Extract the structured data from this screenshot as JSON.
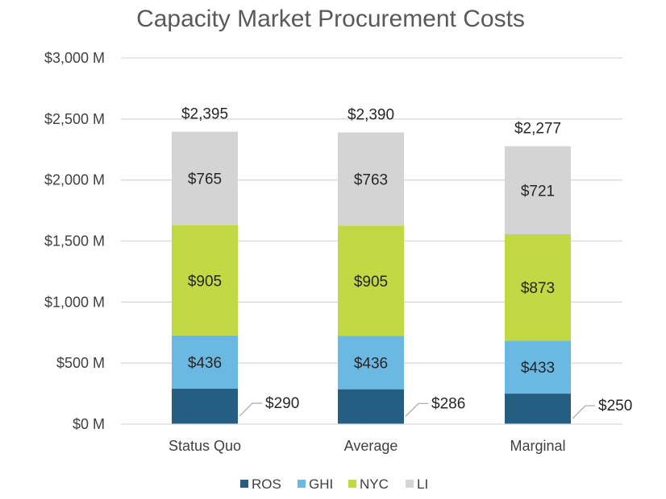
{
  "chart_data": {
    "type": "bar",
    "stacked": true,
    "title": "Capacity Market Procurement Costs",
    "xlabel": "",
    "ylabel": "",
    "ylim": [
      0,
      3000
    ],
    "yticks": [
      "$0 M",
      "$500 M",
      "$1,000 M",
      "$1,500 M",
      "$2,000 M",
      "$2,500 M",
      "$3,000 M"
    ],
    "ytick_values": [
      0,
      500,
      1000,
      1500,
      2000,
      2500,
      3000
    ],
    "categories": [
      "Status Quo",
      "Average",
      "Marginal"
    ],
    "series": [
      {
        "name": "ROS",
        "color": "#255E80",
        "values": [
          290,
          286,
          250
        ],
        "labels": [
          "$290",
          "$286",
          "$250"
        ]
      },
      {
        "name": "GHI",
        "color": "#6BB9E3",
        "values": [
          436,
          436,
          433
        ],
        "labels": [
          "$436",
          "$436",
          "$433"
        ]
      },
      {
        "name": "NYC",
        "color": "#C2D845",
        "values": [
          905,
          905,
          873
        ],
        "labels": [
          "$905",
          "$905",
          "$873"
        ]
      },
      {
        "name": "LI",
        "color": "#D4D4D4",
        "values": [
          765,
          763,
          721
        ],
        "labels": [
          "$765",
          "$763",
          "$721"
        ]
      }
    ],
    "totals": [
      2395,
      2390,
      2277
    ],
    "total_labels": [
      "$2,395",
      "$2,390",
      "$2,277"
    ],
    "grid": true,
    "legend": "bottom"
  }
}
